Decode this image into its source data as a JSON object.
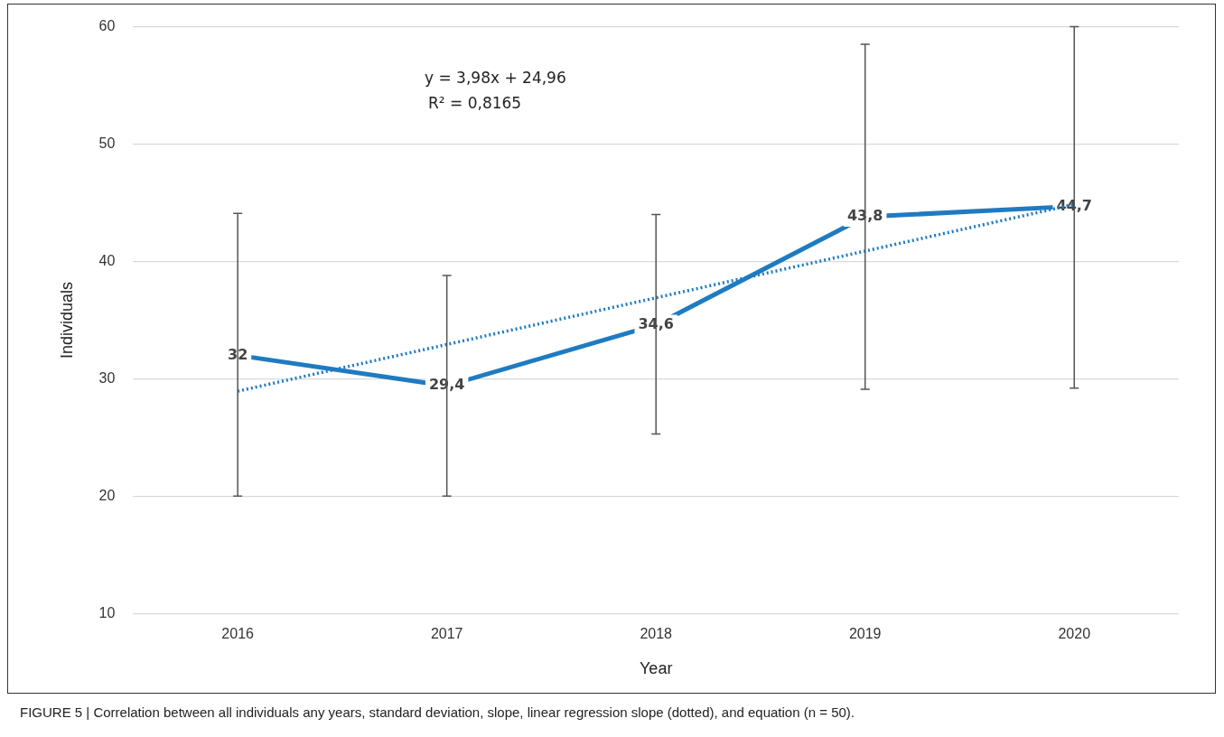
{
  "chart_data": {
    "type": "line",
    "xlabel": "Year",
    "ylabel": "Individuals",
    "categories": [
      "2016",
      "2017",
      "2018",
      "2019",
      "2020"
    ],
    "series": [
      {
        "color": "#1f7bc1",
        "values": [
          32,
          29.4,
          34.6,
          43.8,
          44.7
        ],
        "value_labels": [
          "32",
          "29,4",
          "34,6",
          "43,8",
          "44,7"
        ],
        "errors": [
          [
            20,
            44.1
          ],
          [
            20,
            38.8
          ],
          [
            25.3,
            44
          ],
          [
            29.1,
            58.5
          ],
          [
            29.2,
            60
          ]
        ],
        "line_style": "solid"
      },
      {
        "color": "#1f7bc1",
        "values": [
          28.94,
          32.92,
          36.9,
          40.88,
          44.86
        ],
        "line_style": "dotted"
      }
    ],
    "ylim": [
      10,
      60
    ],
    "yticks": [
      10,
      20,
      30,
      40,
      50,
      60
    ],
    "grid": "y",
    "legend": false,
    "marker": "none",
    "annotations": [
      "y = 3,98x + 24,96",
      "R² = 0,8165",
      "FIGURE 5 | Correlation between all individuals any years, standard deviation, slope, linear regression slope (dotted), and equation (n = 50)."
    ]
  }
}
